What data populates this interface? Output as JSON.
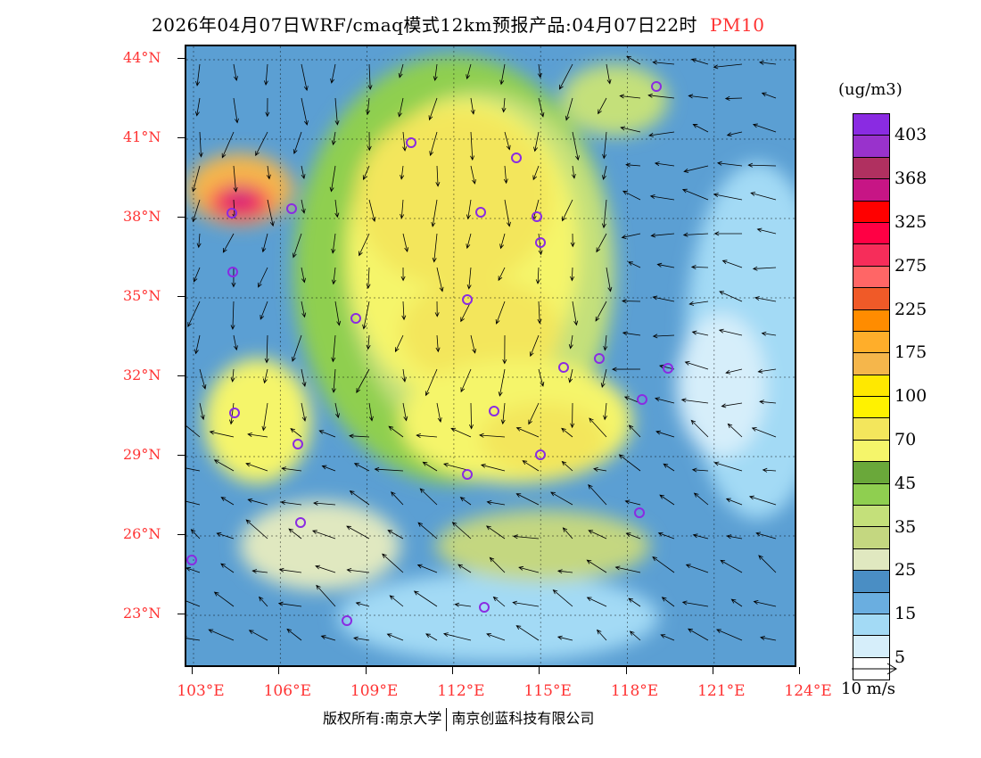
{
  "title": {
    "main": "2026年04月07日WRF/cmaq模式12km预报产品:04月07日22时",
    "pollutant": "PM10"
  },
  "lat_labels": [
    "44°N",
    "41°N",
    "38°N",
    "35°N",
    "32°N",
    "29°N",
    "26°N",
    "23°N"
  ],
  "lon_labels": [
    "103°E",
    "106°E",
    "109°E",
    "112°E",
    "115°E",
    "118°E",
    "121°E",
    "124°E"
  ],
  "colorbar": {
    "unit": "(ug/m3)",
    "colors": [
      "#8a2be2",
      "#9932cc",
      "#b03060",
      "#c71585",
      "#ff0000",
      "#ff0044",
      "#f62d5a",
      "#ff6666",
      "#f05a28",
      "#ff8c00",
      "#ffae2a",
      "#f5b64b",
      "#ffe800",
      "#fff200",
      "#f3e65c",
      "#f5f56a",
      "#6aa83a",
      "#8fcf50",
      "#c4e07a",
      "#c4d780",
      "#e0e8c0",
      "#4a8ec4",
      "#6aaee0",
      "#a3daf5",
      "#d6eefa",
      "#ffffff"
    ],
    "labels": [
      "403",
      "368",
      "325",
      "275",
      "225",
      "175",
      "100",
      "70",
      "45",
      "35",
      "25",
      "15",
      "5"
    ]
  },
  "wind_reference": "10 m/s",
  "footer": {
    "left": "版权所有:南京大学",
    "right": "南京创蓝科技有限公司"
  }
}
